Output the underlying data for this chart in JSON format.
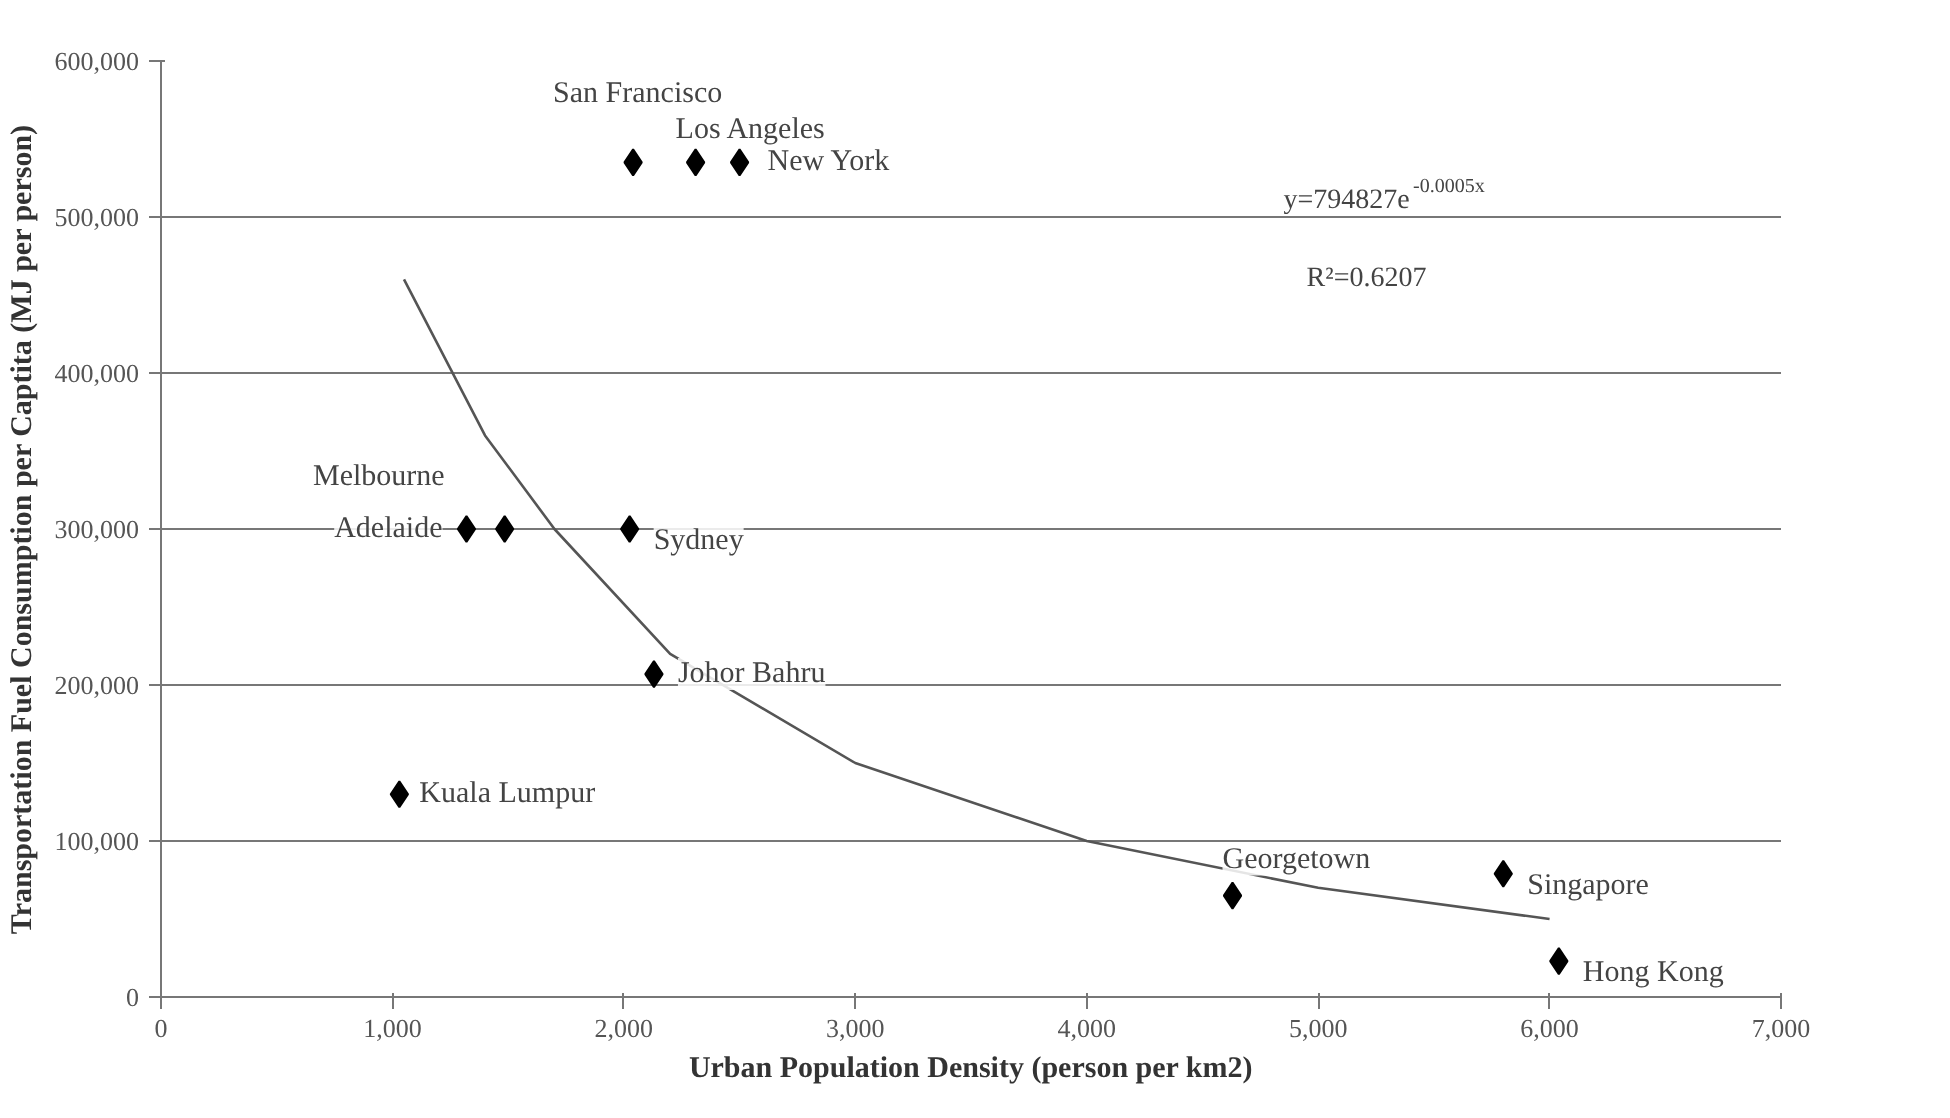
{
  "chart_data": {
    "type": "scatter",
    "xlabel": "Urban Population Density (person per km2)",
    "ylabel": "Transportation Fuel Consumption per Captita (MJ per person)",
    "xlim": [
      0,
      7000
    ],
    "xticks": [
      {
        "value": 0,
        "label": "0"
      },
      {
        "value": 1000,
        "label": "1,000"
      },
      {
        "value": 2000,
        "label": "2,000"
      },
      {
        "value": 3000,
        "label": "3,000"
      },
      {
        "value": 4000,
        "label": "4,000"
      },
      {
        "value": 5000,
        "label": "5,000"
      },
      {
        "value": 6000,
        "label": "6,000"
      },
      {
        "value": 7000,
        "label": "7,000"
      }
    ],
    "ylim": [
      0,
      600000
    ],
    "yticks": [
      {
        "value": 0,
        "label": "0"
      },
      {
        "value": 100000,
        "label": "100,000"
      },
      {
        "value": 200000,
        "label": "200,000"
      },
      {
        "value": 300000,
        "label": "300,000"
      },
      {
        "value": 400000,
        "label": "400,000"
      },
      {
        "value": 500000,
        "label": "500,000"
      },
      {
        "value": 600000,
        "label": "600,000"
      }
    ],
    "grid": "y",
    "marker": "diamond",
    "series": [
      {
        "color": "#000000",
        "x": [
          2040,
          2310,
          2500,
          1320,
          1485,
          2025,
          2130,
          1030,
          4630,
          5800,
          6040
        ],
        "values": [
          535000,
          535000,
          535000,
          300000,
          300000,
          300000,
          207000,
          130000,
          65000,
          79000,
          23000
        ]
      },
      {
        "type": "line",
        "marker": "none",
        "color": "#555555",
        "x": [
          1050,
          1400,
          1700,
          2200,
          3000,
          4000,
          5000,
          6000
        ],
        "values": [
          460000,
          360000,
          300000,
          220000,
          150000,
          100000,
          70000,
          50000
        ]
      }
    ],
    "annotations": [
      {
        "text": "San Francisco",
        "x": 2040,
        "y": 535000
      },
      {
        "text": "Los Angeles",
        "x": 2310,
        "y": 535000
      },
      {
        "text": "New York",
        "x": 2500,
        "y": 535000
      },
      {
        "text": "Melbourne",
        "x": 1485,
        "y": 300000
      },
      {
        "text": "Adelaide",
        "x": 1320,
        "y": 300000
      },
      {
        "text": "Sydney",
        "x": 2025,
        "y": 300000
      },
      {
        "text": "Johor Bahru",
        "x": 2130,
        "y": 207000
      },
      {
        "text": "Kuala Lumpur",
        "x": 1030,
        "y": 130000
      },
      {
        "text": "Georgetown",
        "x": 4630,
        "y": 65000
      },
      {
        "text": "Singapore",
        "x": 5800,
        "y": 79000
      },
      {
        "text": "Hong Kong",
        "x": 6040,
        "y": 23000
      },
      "y=794827e$^{-0.0005x}$",
      "R²=0.6207"
    ]
  }
}
